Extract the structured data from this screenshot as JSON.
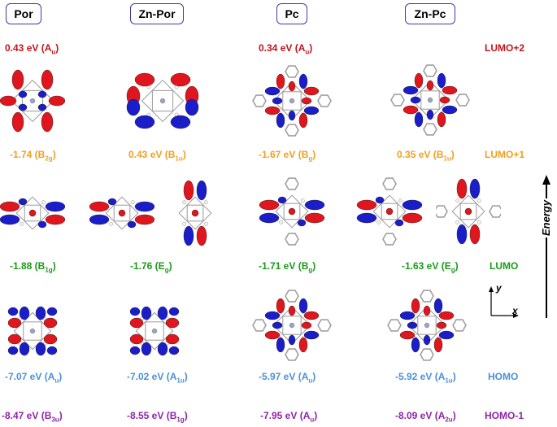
{
  "colors": {
    "lumo2": "#c0141c",
    "lumo1": "#f0a020",
    "lumo": "#1a9a1a",
    "homo": "#4a90d9",
    "homo1": "#8e24aa",
    "header_border": "#3b3bb0"
  },
  "headers": [
    "Por",
    "Zn-Por",
    "Pc",
    "Zn-Pc"
  ],
  "rows": {
    "lumo2": {
      "level": "LUMO+2",
      "labels": [
        {
          "val": "0.43 eV (A",
          "sub": "u",
          "end": ")"
        },
        {
          "val": "0.34 eV (A",
          "sub": "u",
          "end": ")"
        }
      ]
    },
    "lumo1": {
      "level": "LUMO+1",
      "labels": [
        {
          "val": "-1.74 (B",
          "sub": "2g",
          "end": ")"
        },
        {
          "val": "0.43 eV (B",
          "sub": "1u",
          "end": ")"
        },
        {
          "val": "-1.67 eV (B",
          "sub": "g",
          "end": ")"
        },
        {
          "val": "0.35 eV (B",
          "sub": "1u",
          "end": ")"
        }
      ]
    },
    "lumo": {
      "level": "LUMO",
      "labels": [
        {
          "val": "-1.88 (B",
          "sub": "1g",
          "end": ")"
        },
        {
          "val": "-1.76 (E",
          "sub": "g",
          "end": ")"
        },
        {
          "val": "-1.71 eV (B",
          "sub": "g",
          "end": ")"
        },
        {
          "val": "-1.63 eV (E",
          "sub": "g",
          "end": ")"
        }
      ]
    },
    "homo": {
      "level": "HOMO",
      "labels": [
        {
          "val": "-7.07 eV (A",
          "sub": "u",
          "end": ")"
        },
        {
          "val": "-7.02 eV (A",
          "sub": "1u",
          "end": ")"
        },
        {
          "val": "-5.97 eV (A",
          "sub": "u",
          "end": ")"
        },
        {
          "val": "-5.92 eV (A",
          "sub": "1u",
          "end": ")"
        }
      ]
    },
    "homo1": {
      "level": "HOMO-1",
      "labels": [
        {
          "val": "-8.47 eV (B",
          "sub": "3u",
          "end": ")"
        },
        {
          "val": "-8.55 eV (B",
          "sub": "1g",
          "end": ")"
        },
        {
          "val": "-7.95 eV (A",
          "sub": "u",
          "end": ")"
        },
        {
          "val": "-8.09 eV (A",
          "sub": "2u",
          "end": ")"
        }
      ]
    }
  },
  "axis": {
    "energy": "Energy",
    "x": "x",
    "y": "y"
  }
}
